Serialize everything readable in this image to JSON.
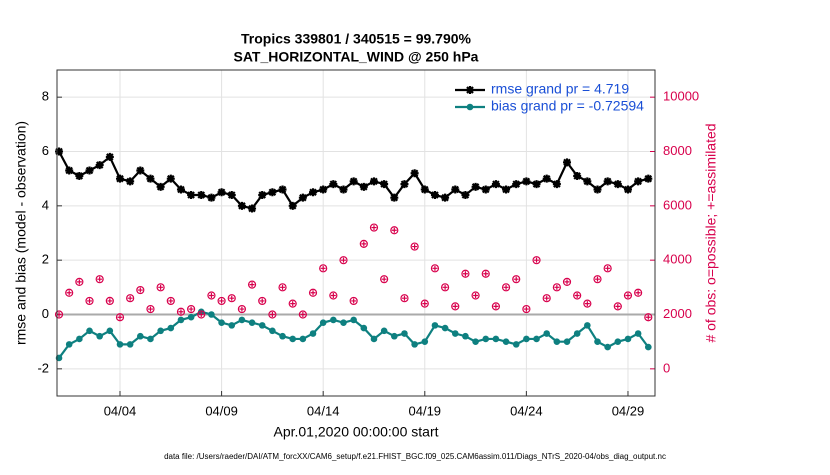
{
  "chart_data": {
    "type": "line",
    "title": "Tropics 339801 / 340515 = 99.790%",
    "subtitle": "SAT_HORIZONTAL_WIND @ 250 hPa",
    "xlabel": "Apr.01,2020 00:00:00 start",
    "ylabel": "rmse and bias (model - observation)",
    "y2label": "# of obs: o=possible; +=assimilated",
    "footnote": "data file: /Users/raeder/DAI/ATM_forcXX/CAM6_setup/f.e21.FHIST_BGC.f09_025.CAM6assim.011/Diags_NTrS_2020-04/obs_diag_output.nc",
    "x": [
      1,
      1.5,
      2,
      2.5,
      3,
      3.5,
      4,
      4.5,
      5,
      5.5,
      6,
      6.5,
      7,
      7.5,
      8,
      8.5,
      9,
      9.5,
      10,
      10.5,
      11,
      11.5,
      12,
      12.5,
      13,
      13.5,
      14,
      14.5,
      15,
      15.5,
      16,
      16.5,
      17,
      17.5,
      18,
      18.5,
      19,
      19.5,
      20,
      20.5,
      21,
      21.5,
      22,
      22.5,
      23,
      23.5,
      24,
      24.5,
      25,
      25.5,
      26,
      26.5,
      27,
      27.5,
      28,
      28.5,
      29,
      29.5,
      30
    ],
    "series": [
      {
        "name": "rmse grand pr = 4.719",
        "color": "#000000",
        "marker": "star",
        "values": [
          6.0,
          5.3,
          5.1,
          5.3,
          5.5,
          5.8,
          5.0,
          4.9,
          5.3,
          5.0,
          4.7,
          5.0,
          4.6,
          4.4,
          4.4,
          4.3,
          4.5,
          4.4,
          4.0,
          3.9,
          4.4,
          4.5,
          4.6,
          4.0,
          4.3,
          4.5,
          4.6,
          4.8,
          4.6,
          4.9,
          4.7,
          4.9,
          4.8,
          4.3,
          4.8,
          5.2,
          4.6,
          4.4,
          4.3,
          4.6,
          4.4,
          4.7,
          4.6,
          4.8,
          4.6,
          4.8,
          4.9,
          4.8,
          5.0,
          4.8,
          5.6,
          5.1,
          4.9,
          4.6,
          4.9,
          4.8,
          4.6,
          4.9,
          5.0
        ]
      },
      {
        "name": "bias grand pr = -0.72594",
        "color": "#0e8080",
        "marker": "circle",
        "values": [
          -1.6,
          -1.1,
          -0.9,
          -0.6,
          -0.8,
          -0.6,
          -1.1,
          -1.1,
          -0.8,
          -0.9,
          -0.6,
          -0.5,
          -0.2,
          -0.1,
          0.1,
          0.0,
          -0.3,
          -0.4,
          -0.2,
          -0.3,
          -0.4,
          -0.6,
          -0.8,
          -0.9,
          -0.9,
          -0.7,
          -0.3,
          -0.2,
          -0.3,
          -0.2,
          -0.5,
          -0.9,
          -0.6,
          -0.8,
          -0.7,
          -1.1,
          -1.0,
          -0.4,
          -0.5,
          -0.7,
          -0.8,
          -1.0,
          -0.9,
          -0.9,
          -1.0,
          -1.1,
          -0.9,
          -0.9,
          -0.7,
          -1.0,
          -1.0,
          -0.7,
          -0.4,
          -1.0,
          -1.2,
          -1.0,
          -0.9,
          -0.7,
          -1.2
        ]
      },
      {
        "axis": "y2",
        "color": "#d8004c",
        "marker": "obs",
        "values": [
          2000,
          2800,
          3200,
          2500,
          3300,
          2500,
          1900,
          2600,
          2900,
          2200,
          3000,
          2500,
          2100,
          2200,
          2000,
          2700,
          2500,
          2600,
          2200,
          3100,
          2500,
          2000,
          3000,
          2400,
          2000,
          2800,
          3700,
          2700,
          4000,
          2500,
          4600,
          5200,
          3300,
          5100,
          2600,
          4500,
          2400,
          3700,
          3000,
          2300,
          3500,
          2700,
          3500,
          2300,
          3000,
          3300,
          2200,
          4000,
          2600,
          3000,
          3200,
          2700,
          2400,
          3300,
          3700,
          2300,
          2700,
          2800,
          1900
        ]
      }
    ],
    "reference_line": 0,
    "xlim": [
      0.9,
      30.33
    ],
    "xticks": [
      {
        "value": 4,
        "label": "04/04"
      },
      {
        "value": 9,
        "label": "04/09"
      },
      {
        "value": 14,
        "label": "04/14"
      },
      {
        "value": 19,
        "label": "04/19"
      },
      {
        "value": 24,
        "label": "04/24"
      },
      {
        "value": 29,
        "label": "04/29"
      }
    ],
    "ylim": [
      -3,
      9
    ],
    "yticks": [
      -2,
      0,
      2,
      4,
      6,
      8
    ],
    "y2lim": [
      -1000,
      11000
    ],
    "y2ticks": [
      0,
      2000,
      4000,
      6000,
      8000,
      10000
    ],
    "y2color": "#d8004c",
    "legend_color": "#1a4fd6",
    "grid": true,
    "legend": "upper right"
  }
}
